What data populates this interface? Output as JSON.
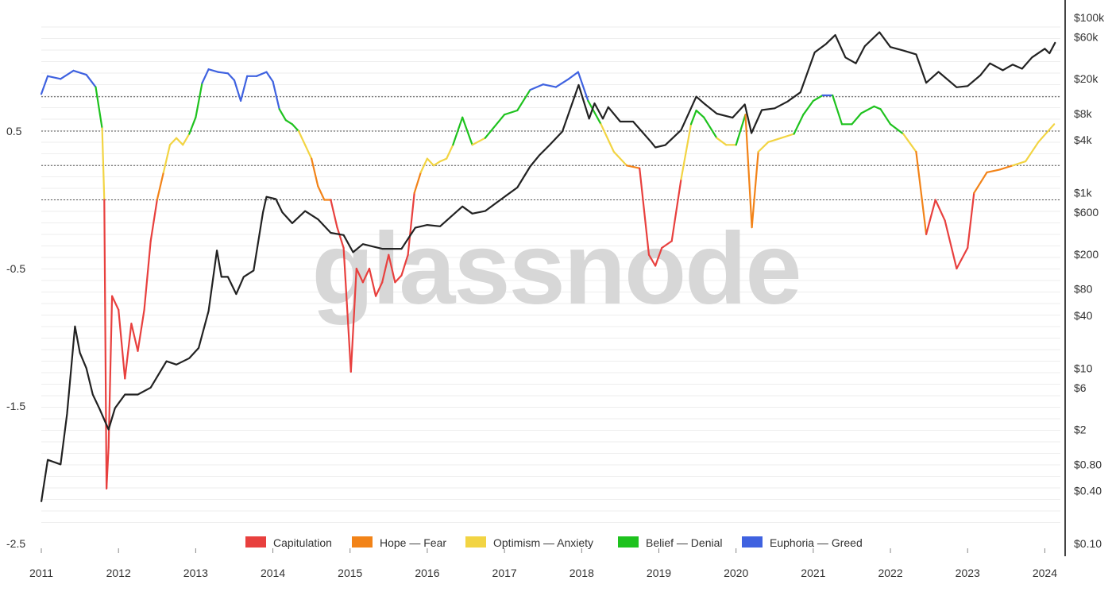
{
  "chart_data": {
    "type": "line",
    "title": "",
    "watermark": "glassnode",
    "xlabel": "",
    "ylabel_left": "",
    "ylabel_right": "",
    "x_ticks": [
      "2011",
      "2012",
      "2013",
      "2014",
      "2015",
      "2016",
      "2017",
      "2018",
      "2019",
      "2020",
      "2021",
      "2022",
      "2023",
      "2024"
    ],
    "y_left_ticks": [
      "0.5",
      "-0.5",
      "-1.5",
      "-2.5"
    ],
    "y_left_range": [
      -2.5,
      0.5
    ],
    "y_right_ticks": [
      "$100k",
      "$60k",
      "$20k",
      "$8k",
      "$4k",
      "$1k",
      "$600",
      "$200",
      "$80",
      "$40",
      "$10",
      "$6",
      "$2",
      "$0.80",
      "$0.40",
      "$0.10"
    ],
    "y_right_scale": "log",
    "y_right_range": [
      0.1,
      100000
    ],
    "reference_lines_left": [
      0.75,
      0.5,
      0.25,
      0.0
    ],
    "grid": true,
    "legend_position": "bottom-center",
    "legend": [
      {
        "label": "Capitulation",
        "color": "#e8403e"
      },
      {
        "label": "Hope — Fear",
        "color": "#f28318"
      },
      {
        "label": "Optimism — Anxiety",
        "color": "#f2d443"
      },
      {
        "label": "Belief — Denial",
        "color": "#1ec21e"
      },
      {
        "label": "Euphoria — Greed",
        "color": "#3f62e0"
      }
    ],
    "series": [
      {
        "kind": "nupl",
        "axis": "left",
        "points": [
          [
            "2011-01-01",
            0.77
          ],
          [
            "2011-02-01",
            0.9
          ],
          [
            "2011-04-01",
            0.88
          ],
          [
            "2011-06-01",
            0.94
          ],
          [
            "2011-08-01",
            0.91
          ],
          [
            "2011-09-15",
            0.82
          ],
          [
            "2011-10-15",
            0.52
          ],
          [
            "2011-10-25",
            0.0
          ],
          [
            "2011-11-05",
            -2.1
          ],
          [
            "2011-11-15",
            -1.8
          ],
          [
            "2011-12-01",
            -0.7
          ],
          [
            "2012-01-01",
            -0.8
          ],
          [
            "2012-02-01",
            -1.3
          ],
          [
            "2012-03-01",
            -0.9
          ],
          [
            "2012-04-01",
            -1.1
          ],
          [
            "2012-05-01",
            -0.8
          ],
          [
            "2012-06-01",
            -0.3
          ],
          [
            "2012-07-01",
            0.0
          ],
          [
            "2012-08-01",
            0.2
          ],
          [
            "2012-09-01",
            0.4
          ],
          [
            "2012-10-01",
            0.45
          ],
          [
            "2012-11-01",
            0.4
          ],
          [
            "2012-12-01",
            0.48
          ],
          [
            "2013-01-01",
            0.6
          ],
          [
            "2013-02-01",
            0.85
          ],
          [
            "2013-03-01",
            0.95
          ],
          [
            "2013-04-15",
            0.93
          ],
          [
            "2013-06-01",
            0.92
          ],
          [
            "2013-07-01",
            0.87
          ],
          [
            "2013-08-01",
            0.72
          ],
          [
            "2013-09-01",
            0.9
          ],
          [
            "2013-10-15",
            0.9
          ],
          [
            "2013-12-01",
            0.93
          ],
          [
            "2014-01-01",
            0.86
          ],
          [
            "2014-02-01",
            0.66
          ],
          [
            "2014-03-01",
            0.58
          ],
          [
            "2014-04-01",
            0.55
          ],
          [
            "2014-05-01",
            0.5
          ],
          [
            "2014-06-01",
            0.4
          ],
          [
            "2014-07-01",
            0.3
          ],
          [
            "2014-08-01",
            0.1
          ],
          [
            "2014-09-01",
            0.0
          ],
          [
            "2014-10-01",
            0.0
          ],
          [
            "2014-11-01",
            -0.2
          ],
          [
            "2014-12-01",
            -0.35
          ],
          [
            "2015-01-05",
            -1.25
          ],
          [
            "2015-02-01",
            -0.5
          ],
          [
            "2015-03-01",
            -0.6
          ],
          [
            "2015-04-01",
            -0.5
          ],
          [
            "2015-05-01",
            -0.7
          ],
          [
            "2015-06-01",
            -0.6
          ],
          [
            "2015-07-01",
            -0.4
          ],
          [
            "2015-08-01",
            -0.6
          ],
          [
            "2015-09-01",
            -0.55
          ],
          [
            "2015-10-01",
            -0.4
          ],
          [
            "2015-11-01",
            0.05
          ],
          [
            "2015-12-01",
            0.2
          ],
          [
            "2016-01-01",
            0.3
          ],
          [
            "2016-02-01",
            0.25
          ],
          [
            "2016-03-01",
            0.28
          ],
          [
            "2016-04-01",
            0.3
          ],
          [
            "2016-05-01",
            0.4
          ],
          [
            "2016-06-15",
            0.6
          ],
          [
            "2016-08-01",
            0.4
          ],
          [
            "2016-10-01",
            0.45
          ],
          [
            "2017-01-01",
            0.62
          ],
          [
            "2017-03-01",
            0.65
          ],
          [
            "2017-05-01",
            0.8
          ],
          [
            "2017-07-01",
            0.84
          ],
          [
            "2017-09-01",
            0.82
          ],
          [
            "2017-11-01",
            0.88
          ],
          [
            "2017-12-15",
            0.93
          ],
          [
            "2018-02-01",
            0.72
          ],
          [
            "2018-04-01",
            0.55
          ],
          [
            "2018-06-01",
            0.35
          ],
          [
            "2018-08-01",
            0.25
          ],
          [
            "2018-10-01",
            0.23
          ],
          [
            "2018-11-15",
            -0.4
          ],
          [
            "2018-12-15",
            -0.48
          ],
          [
            "2019-01-15",
            -0.35
          ],
          [
            "2019-03-01",
            -0.3
          ],
          [
            "2019-04-15",
            0.15
          ],
          [
            "2019-06-01",
            0.55
          ],
          [
            "2019-06-26",
            0.65
          ],
          [
            "2019-08-01",
            0.6
          ],
          [
            "2019-10-01",
            0.45
          ],
          [
            "2019-11-15",
            0.4
          ],
          [
            "2020-01-01",
            0.4
          ],
          [
            "2020-02-15",
            0.62
          ],
          [
            "2020-03-15",
            -0.2
          ],
          [
            "2020-04-15",
            0.35
          ],
          [
            "2020-06-01",
            0.42
          ],
          [
            "2020-08-01",
            0.45
          ],
          [
            "2020-10-01",
            0.48
          ],
          [
            "2020-11-15",
            0.62
          ],
          [
            "2021-01-01",
            0.72
          ],
          [
            "2021-02-15",
            0.76
          ],
          [
            "2021-04-01",
            0.76
          ],
          [
            "2021-05-15",
            0.55
          ],
          [
            "2021-07-01",
            0.55
          ],
          [
            "2021-08-15",
            0.63
          ],
          [
            "2021-10-15",
            0.68
          ],
          [
            "2021-11-15",
            0.66
          ],
          [
            "2022-01-01",
            0.55
          ],
          [
            "2022-03-01",
            0.48
          ],
          [
            "2022-05-01",
            0.35
          ],
          [
            "2022-06-18",
            -0.25
          ],
          [
            "2022-08-01",
            0.0
          ],
          [
            "2022-09-15",
            -0.15
          ],
          [
            "2022-11-10",
            -0.5
          ],
          [
            "2023-01-01",
            -0.35
          ],
          [
            "2023-02-01",
            0.05
          ],
          [
            "2023-04-01",
            0.2
          ],
          [
            "2023-06-01",
            0.22
          ],
          [
            "2023-08-01",
            0.25
          ],
          [
            "2023-10-01",
            0.28
          ],
          [
            "2023-12-01",
            0.42
          ],
          [
            "2024-02-15",
            0.55
          ]
        ]
      },
      {
        "kind": "price",
        "axis": "right",
        "name": "",
        "color": "#222222",
        "points": [
          [
            "2011-01-01",
            0.3
          ],
          [
            "2011-02-01",
            0.9
          ],
          [
            "2011-04-01",
            0.8
          ],
          [
            "2011-05-01",
            3
          ],
          [
            "2011-06-08",
            30
          ],
          [
            "2011-07-01",
            15
          ],
          [
            "2011-08-01",
            10
          ],
          [
            "2011-09-01",
            5
          ],
          [
            "2011-10-01",
            3.5
          ],
          [
            "2011-11-15",
            2
          ],
          [
            "2011-12-15",
            3.5
          ],
          [
            "2012-02-01",
            5
          ],
          [
            "2012-04-01",
            5
          ],
          [
            "2012-06-01",
            6
          ],
          [
            "2012-08-15",
            12
          ],
          [
            "2012-10-01",
            11
          ],
          [
            "2012-12-01",
            13
          ],
          [
            "2013-01-15",
            17
          ],
          [
            "2013-03-01",
            45
          ],
          [
            "2013-04-10",
            220
          ],
          [
            "2013-05-01",
            110
          ],
          [
            "2013-06-01",
            110
          ],
          [
            "2013-07-10",
            70
          ],
          [
            "2013-08-15",
            110
          ],
          [
            "2013-10-01",
            130
          ],
          [
            "2013-11-15",
            600
          ],
          [
            "2013-12-01",
            900
          ],
          [
            "2014-01-15",
            850
          ],
          [
            "2014-02-15",
            600
          ],
          [
            "2014-04-01",
            450
          ],
          [
            "2014-06-01",
            620
          ],
          [
            "2014-08-01",
            500
          ],
          [
            "2014-10-01",
            350
          ],
          [
            "2014-12-01",
            330
          ],
          [
            "2015-01-15",
            210
          ],
          [
            "2015-03-01",
            260
          ],
          [
            "2015-06-01",
            230
          ],
          [
            "2015-09-01",
            230
          ],
          [
            "2015-11-05",
            400
          ],
          [
            "2016-01-01",
            430
          ],
          [
            "2016-03-01",
            415
          ],
          [
            "2016-06-15",
            700
          ],
          [
            "2016-08-01",
            580
          ],
          [
            "2016-10-01",
            620
          ],
          [
            "2017-01-01",
            900
          ],
          [
            "2017-03-01",
            1150
          ],
          [
            "2017-05-01",
            2000
          ],
          [
            "2017-06-15",
            2700
          ],
          [
            "2017-08-01",
            3500
          ],
          [
            "2017-10-01",
            5000
          ],
          [
            "2017-12-17",
            17000
          ],
          [
            "2018-02-06",
            7000
          ],
          [
            "2018-03-01",
            10500
          ],
          [
            "2018-04-10",
            7000
          ],
          [
            "2018-05-05",
            9500
          ],
          [
            "2018-07-01",
            6500
          ],
          [
            "2018-09-01",
            6500
          ],
          [
            "2018-11-25",
            3800
          ],
          [
            "2018-12-15",
            3300
          ],
          [
            "2019-02-01",
            3500
          ],
          [
            "2019-04-15",
            5200
          ],
          [
            "2019-06-26",
            12500
          ],
          [
            "2019-08-01",
            10500
          ],
          [
            "2019-10-01",
            8000
          ],
          [
            "2019-12-15",
            7200
          ],
          [
            "2020-02-12",
            10200
          ],
          [
            "2020-03-13",
            4800
          ],
          [
            "2020-05-01",
            8800
          ],
          [
            "2020-07-01",
            9200
          ],
          [
            "2020-09-01",
            11000
          ],
          [
            "2020-11-01",
            14000
          ],
          [
            "2021-01-08",
            40000
          ],
          [
            "2021-03-01",
            50000
          ],
          [
            "2021-04-14",
            63000
          ],
          [
            "2021-06-01",
            35000
          ],
          [
            "2021-07-20",
            30000
          ],
          [
            "2021-09-01",
            47000
          ],
          [
            "2021-11-10",
            68000
          ],
          [
            "2022-01-01",
            46000
          ],
          [
            "2022-03-01",
            42000
          ],
          [
            "2022-05-01",
            38000
          ],
          [
            "2022-06-18",
            18000
          ],
          [
            "2022-08-15",
            24000
          ],
          [
            "2022-11-10",
            16000
          ],
          [
            "2023-01-01",
            16500
          ],
          [
            "2023-03-01",
            22000
          ],
          [
            "2023-04-15",
            30000
          ],
          [
            "2023-06-15",
            25000
          ],
          [
            "2023-08-01",
            29000
          ],
          [
            "2023-09-15",
            26000
          ],
          [
            "2023-11-01",
            35000
          ],
          [
            "2024-01-01",
            44000
          ],
          [
            "2024-01-23",
            39000
          ],
          [
            "2024-02-20",
            52000
          ]
        ]
      }
    ]
  }
}
